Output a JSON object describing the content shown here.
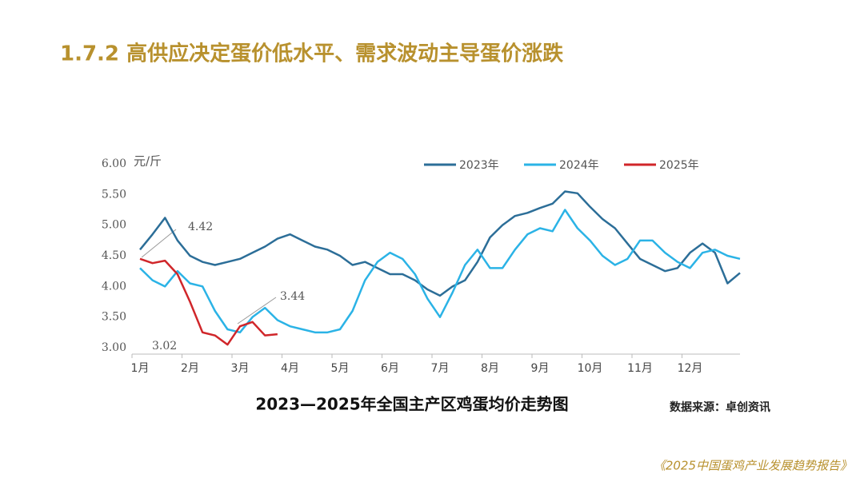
{
  "slide_title": "1.7.2 高供应决定蛋价低水平、需求波动主导蛋价涨跌",
  "footer": "《2025中国蛋鸡产业发展趋势报告》",
  "chart_data": {
    "type": "line",
    "title": "2023—2025年全国主产区鸡蛋均价走势图",
    "source": "数据来源：卓创资讯",
    "y_label": "元/斤",
    "annotations": [
      "4.42",
      "3.44",
      "3.02"
    ],
    "x": [
      1,
      1.25,
      1.5,
      1.75,
      2,
      2.25,
      2.5,
      2.75,
      3,
      3.25,
      3.5,
      3.75,
      4,
      4.25,
      4.5,
      4.75,
      5,
      5.25,
      5.5,
      5.75,
      6,
      6.25,
      6.5,
      6.75,
      7,
      7.25,
      7.5,
      7.75,
      8,
      8.25,
      8.5,
      8.75,
      9,
      9.25,
      9.5,
      9.75,
      10,
      10.25,
      10.5,
      10.75,
      11,
      11.25,
      11.5,
      11.75,
      12,
      12.25,
      12.5,
      12.75,
      13
    ],
    "xlim": [
      1,
      13
    ],
    "xticks": [
      {
        "value": 1,
        "label": "1月"
      },
      {
        "value": 2,
        "label": "2月"
      },
      {
        "value": 3,
        "label": "3月"
      },
      {
        "value": 4,
        "label": "4月"
      },
      {
        "value": 5,
        "label": "5月"
      },
      {
        "value": 6,
        "label": "6月"
      },
      {
        "value": 7,
        "label": "7月"
      },
      {
        "value": 8,
        "label": "8月"
      },
      {
        "value": 9,
        "label": "9月"
      },
      {
        "value": 10,
        "label": "10月"
      },
      {
        "value": 11,
        "label": "11月"
      },
      {
        "value": 12,
        "label": "12月"
      }
    ],
    "ylim": [
      3,
      6
    ],
    "yticks": [
      {
        "value": 3,
        "label": "3.00"
      },
      {
        "value": 3.5,
        "label": "3.50"
      },
      {
        "value": 4,
        "label": "4.00"
      },
      {
        "value": 4.5,
        "label": "4.50"
      },
      {
        "value": 5,
        "label": "5.00"
      },
      {
        "value": 5.5,
        "label": "5.50"
      },
      {
        "value": 6,
        "label": "6.00"
      }
    ],
    "series": [
      {
        "name": "2023年",
        "color": "#2c6e98",
        "values": [
          4.6,
          4.85,
          5.12,
          4.75,
          4.5,
          4.4,
          4.35,
          4.4,
          4.45,
          4.55,
          4.65,
          4.78,
          4.85,
          4.75,
          4.65,
          4.6,
          4.5,
          4.35,
          4.4,
          4.3,
          4.2,
          4.2,
          4.1,
          3.95,
          3.85,
          4.0,
          4.1,
          4.4,
          4.8,
          5.0,
          5.15,
          5.2,
          5.28,
          5.35,
          5.55,
          5.52,
          5.3,
          5.1,
          4.95,
          4.7,
          4.45,
          4.35,
          4.25,
          4.3,
          4.55,
          4.7,
          4.55,
          4.05,
          4.22
        ]
      },
      {
        "name": "2024年",
        "color": "#2bb3e6",
        "values": [
          4.3,
          4.1,
          4.0,
          4.25,
          4.05,
          4.0,
          3.6,
          3.3,
          3.25,
          3.5,
          3.65,
          3.45,
          3.35,
          3.3,
          3.25,
          3.25,
          3.3,
          3.6,
          4.1,
          4.4,
          4.55,
          4.45,
          4.2,
          3.8,
          3.5,
          3.9,
          4.35,
          4.6,
          4.3,
          4.3,
          4.6,
          4.85,
          4.95,
          4.9,
          5.25,
          4.95,
          4.75,
          4.5,
          4.35,
          4.45,
          4.75,
          4.75,
          4.55,
          4.4,
          4.3,
          4.55,
          4.6,
          4.5,
          4.45
        ]
      },
      {
        "name": "2025年",
        "color": "#d0262a",
        "values": [
          4.45,
          4.38,
          4.42,
          4.2,
          3.75,
          3.25,
          3.2,
          3.05,
          3.35,
          3.42,
          3.2,
          3.22,
          null,
          null,
          null,
          null,
          null,
          null,
          null,
          null,
          null,
          null,
          null,
          null,
          null,
          null,
          null,
          null,
          null,
          null,
          null,
          null,
          null,
          null,
          null,
          null,
          null,
          null,
          null,
          null,
          null,
          null,
          null,
          null,
          null,
          null,
          null,
          null,
          null
        ]
      }
    ]
  }
}
